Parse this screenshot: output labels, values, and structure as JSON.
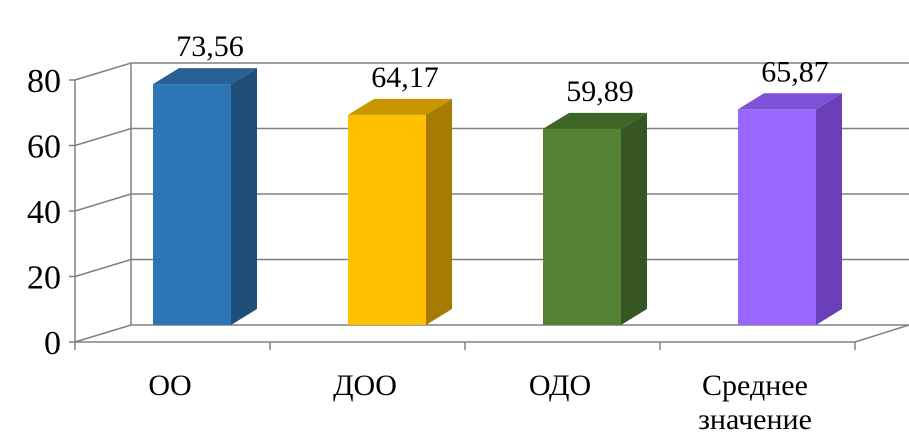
{
  "chart_data": {
    "type": "bar",
    "style": "3d-column",
    "title": "",
    "xlabel": "",
    "ylabel": "",
    "ylim": [
      0,
      80
    ],
    "yticks": [
      0,
      20,
      40,
      60,
      80
    ],
    "grid": true,
    "legend": "none",
    "categories": [
      {
        "lines": [
          "ОО"
        ]
      },
      {
        "lines": [
          "ДОО"
        ]
      },
      {
        "lines": [
          "ОДО"
        ]
      },
      {
        "lines": [
          "Среднее",
          "значение"
        ]
      }
    ],
    "values": [
      73.56,
      64.17,
      59.89,
      65.87
    ],
    "value_labels": [
      "73,56",
      "64,17",
      "59,89",
      "65,87"
    ],
    "colors": [
      {
        "front": "#2E75B6",
        "side": "#1F4E79",
        "top": "#2A5F95"
      },
      {
        "front": "#FFC000",
        "side": "#A67C00",
        "top": "#C89600"
      },
      {
        "front": "#548235",
        "side": "#375623",
        "top": "#3F6427"
      },
      {
        "front": "#9966FF",
        "side": "#6A3FB8",
        "top": "#7D52D6"
      }
    ]
  }
}
